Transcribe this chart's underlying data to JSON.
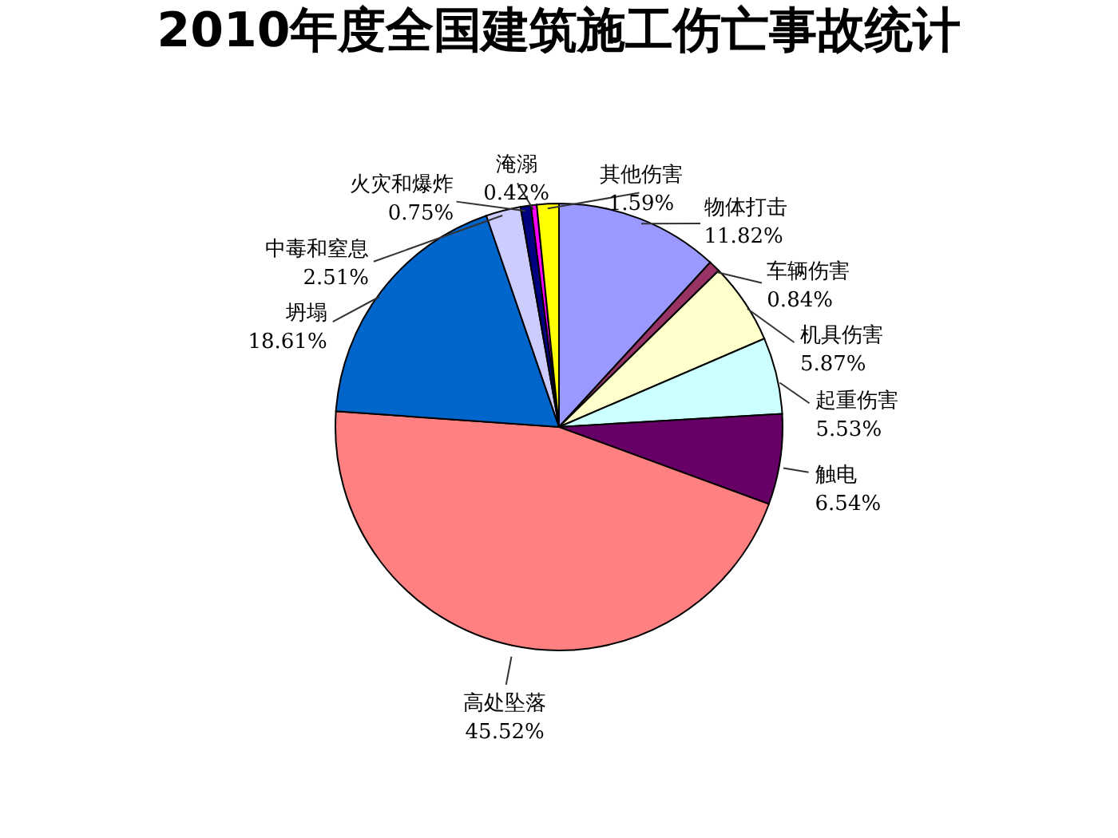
{
  "chart_data": {
    "type": "pie",
    "title": "2010年度全国建筑施工伤亡事故统计",
    "categories": [
      "物体打击",
      "车辆伤害",
      "机具伤害",
      "起重伤害",
      "触电",
      "高处坠落",
      "坍塌",
      "中毒和窒息",
      "火灾和爆炸",
      "淹溺",
      "其他伤害"
    ],
    "values": [
      11.82,
      0.84,
      5.87,
      5.53,
      6.54,
      45.52,
      18.61,
      2.51,
      0.75,
      0.42,
      1.59
    ],
    "value_labels": [
      "11.82%",
      "0.84%",
      "5.87%",
      "5.53%",
      "6.54%",
      "45.52%",
      "18.61%",
      "2.51%",
      "0.75%",
      "0.42%",
      "1.59%"
    ],
    "colors": [
      "#9999ff",
      "#993366",
      "#ffffcc",
      "#ccffff",
      "#660066",
      "#ff8080",
      "#0066cc",
      "#ccccff",
      "#000080",
      "#ff00ff",
      "#ffff00"
    ],
    "legend": false
  }
}
